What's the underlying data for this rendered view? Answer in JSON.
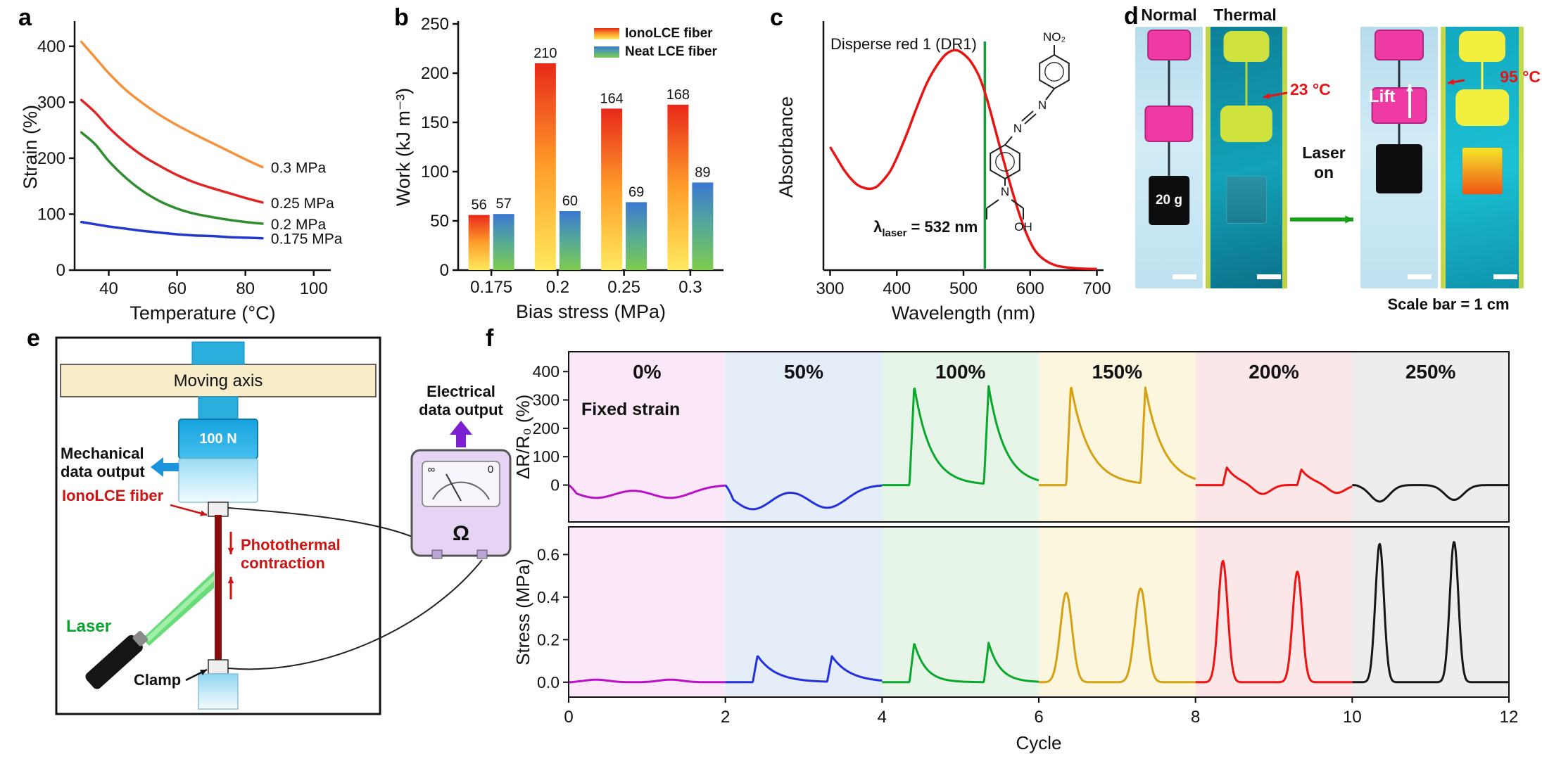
{
  "panels": {
    "a": {
      "label": "a"
    },
    "b": {
      "label": "b"
    },
    "c": {
      "label": "c"
    },
    "d": {
      "label": "d",
      "col1_title": "Normal",
      "col2_title": "Thermal",
      "temp_cold": "23 °C",
      "temp_hot": "95 °C",
      "lift_label": "Lift",
      "laser_on_line1": "Laser",
      "laser_on_line2": "on",
      "weight_label": "20 g",
      "scale_bar_note": "Scale bar = 1 cm"
    },
    "e": {
      "label": "e",
      "moving_axis": "Moving axis",
      "force_gauge": "100 N",
      "mech_output_line1": "Mechanical",
      "mech_output_line2": "data output",
      "fiber_label": "IonoLCE fiber",
      "laser_label": "Laser",
      "photothermal_line1": "Photothermal",
      "photothermal_line2": "contraction",
      "clamp_label": "Clamp",
      "elec_output_line1": "Electrical",
      "elec_output_line2": "data output",
      "ohm_symbol": "Ω",
      "meter_scale_left": "∞",
      "meter_scale_right": "0"
    },
    "f": {
      "label": "f"
    }
  },
  "chart_data": [
    {
      "id": "a",
      "type": "line",
      "xlabel": "Temperature (°C)",
      "ylabel": "Strain (%)",
      "xlim": [
        30,
        105
      ],
      "ylim": [
        0,
        440
      ],
      "xticks": [
        40,
        60,
        80,
        100
      ],
      "yticks": [
        0,
        100,
        200,
        300,
        400
      ],
      "series": [
        {
          "name": "0.3 MPa",
          "color": "#f5923e",
          "x": [
            32,
            36,
            40,
            45,
            50,
            55,
            60,
            65,
            70,
            75,
            80,
            85
          ],
          "y": [
            408,
            380,
            352,
            322,
            298,
            277,
            259,
            243,
            228,
            213,
            198,
            184
          ]
        },
        {
          "name": "0.25 MPa",
          "color": "#e02424",
          "x": [
            32,
            36,
            40,
            45,
            50,
            55,
            60,
            65,
            70,
            75,
            80,
            85
          ],
          "y": [
            304,
            282,
            255,
            227,
            204,
            186,
            170,
            157,
            147,
            138,
            129,
            121
          ]
        },
        {
          "name": "0.2 MPa",
          "color": "#2f8f2f",
          "x": [
            32,
            36,
            40,
            45,
            50,
            55,
            60,
            65,
            70,
            75,
            80,
            85
          ],
          "y": [
            246,
            225,
            195,
            165,
            141,
            123,
            110,
            101,
            95,
            90,
            86,
            83
          ]
        },
        {
          "name": "0.175 MPa",
          "color": "#2238cf",
          "x": [
            32,
            36,
            40,
            45,
            50,
            55,
            60,
            65,
            70,
            75,
            80,
            85
          ],
          "y": [
            86,
            82,
            78,
            74,
            70,
            67,
            64,
            62,
            61,
            59,
            58,
            57
          ]
        }
      ]
    },
    {
      "id": "b",
      "type": "bar",
      "xlabel": "Bias stress (MPa)",
      "ylabel": "Work (kJ m⁻³)",
      "categories": [
        "0.175",
        "0.2",
        "0.25",
        "0.3"
      ],
      "ylim": [
        0,
        250
      ],
      "yticks": [
        0,
        50,
        100,
        150,
        200,
        250
      ],
      "series": [
        {
          "name": "IonoLCE fiber",
          "values": [
            56,
            210,
            164,
            168
          ],
          "gradient": [
            "#e8281a",
            "#ff9e2a",
            "#ffe95e"
          ]
        },
        {
          "name": "Neat LCE fiber",
          "values": [
            57,
            60,
            69,
            89
          ],
          "gradient": [
            "#3b78d2",
            "#55aa96",
            "#7fcb4f"
          ]
        }
      ]
    },
    {
      "id": "c",
      "type": "line",
      "title": "Disperse red 1 (DR1)",
      "xlabel": "Wavelength (nm)",
      "ylabel": "Absorbance",
      "xlim": [
        290,
        710
      ],
      "ylim": [
        0,
        1.12
      ],
      "xticks": [
        300,
        400,
        500,
        600,
        700
      ],
      "laser_wavelength_nm": 532,
      "laser_line_color": "#0f9f3c",
      "laser_label": {
        "pre": "λ",
        "sub": "laser",
        "post": " = 532 nm"
      },
      "structure_labels": {
        "nitro": "NO₂",
        "azo_n1": "N",
        "azo_n2": "N",
        "amine_n": "N",
        "hydroxyl": "OH"
      },
      "series": [
        {
          "name": "DR1 absorbance",
          "color": "#e81414",
          "x": [
            300,
            310,
            320,
            330,
            340,
            350,
            360,
            370,
            380,
            390,
            400,
            415,
            430,
            445,
            460,
            475,
            490,
            505,
            515,
            525,
            535,
            545,
            560,
            575,
            590,
            605,
            620,
            640,
            670,
            700
          ],
          "y": [
            0.56,
            0.51,
            0.46,
            0.42,
            0.39,
            0.375,
            0.37,
            0.38,
            0.41,
            0.45,
            0.51,
            0.62,
            0.74,
            0.85,
            0.93,
            0.985,
            1.0,
            0.97,
            0.93,
            0.87,
            0.78,
            0.67,
            0.5,
            0.34,
            0.2,
            0.1,
            0.05,
            0.02,
            0.008,
            0.005
          ]
        }
      ]
    },
    {
      "id": "f",
      "type": "line",
      "xlabel": "Cycle",
      "xlim": [
        0,
        12
      ],
      "xticks": [
        0,
        2,
        4,
        6,
        8,
        10,
        12
      ],
      "top": {
        "ylabel": "ΔR/R₀ (%)",
        "ylim": [
          -130,
          470
        ],
        "yticks": [
          0,
          100,
          200,
          300,
          400
        ],
        "annotation": "Fixed strain"
      },
      "bottom": {
        "ylabel": "Stress (MPa)",
        "ylim": [
          -0.07,
          0.73
        ],
        "yticks": [
          0,
          0.2,
          0.4,
          0.6
        ],
        "yticklabels": [
          "0.0",
          "0.2",
          "0.4",
          "0.6"
        ]
      },
      "cycles_per_segment": 2,
      "pulse_offsets": [
        0.35,
        1.3
      ],
      "segments": [
        {
          "label": "0%",
          "color": "#b912c4",
          "bg": "#fae8f8",
          "drr_shape": "dip",
          "drr_peaks": [
            -45,
            -45
          ],
          "drr_width": 0.55,
          "stress_shape": "bump",
          "stress_peaks": [
            0.012,
            0.012
          ],
          "stress_width": 0.3
        },
        {
          "label": "50%",
          "color": "#2330dd",
          "bg": "#e4edf8",
          "drr_shape": "dip",
          "drr_peaks": [
            -85,
            -80
          ],
          "drr_width": 0.5,
          "stress_shape": "spike",
          "stress_peaks": [
            0.125,
            0.12
          ],
          "stress_width": 0.55
        },
        {
          "label": "100%",
          "color": "#09a82d",
          "bg": "#e7f5e9",
          "drr_shape": "spike",
          "drr_peaks": [
            350,
            345
          ],
          "drr_width": 0.5,
          "stress_shape": "spike",
          "stress_peaks": [
            0.185,
            0.185
          ],
          "stress_width": 0.35
        },
        {
          "label": "150%",
          "color": "#d3a112",
          "bg": "#fcf6df",
          "drr_shape": "spike",
          "drr_peaks": [
            352,
            338
          ],
          "drr_width": 0.55,
          "stress_shape": "bump",
          "stress_peaks": [
            0.42,
            0.44
          ],
          "stress_width": 0.15
        },
        {
          "label": "200%",
          "color": "#ee1212",
          "bg": "#fbe7e7",
          "drr_shape": "spikedip",
          "drr_peaks": [
            62,
            55
          ],
          "drr_width": 0.3,
          "stress_shape": "bump",
          "stress_peaks": [
            0.57,
            0.52
          ],
          "stress_width": 0.12
        },
        {
          "label": "250%",
          "color": "#161616",
          "bg": "#ededed",
          "drr_shape": "dip",
          "drr_peaks": [
            -58,
            -52
          ],
          "drr_width": 0.24,
          "stress_shape": "bump",
          "stress_peaks": [
            0.65,
            0.66
          ],
          "stress_width": 0.11
        }
      ]
    }
  ]
}
